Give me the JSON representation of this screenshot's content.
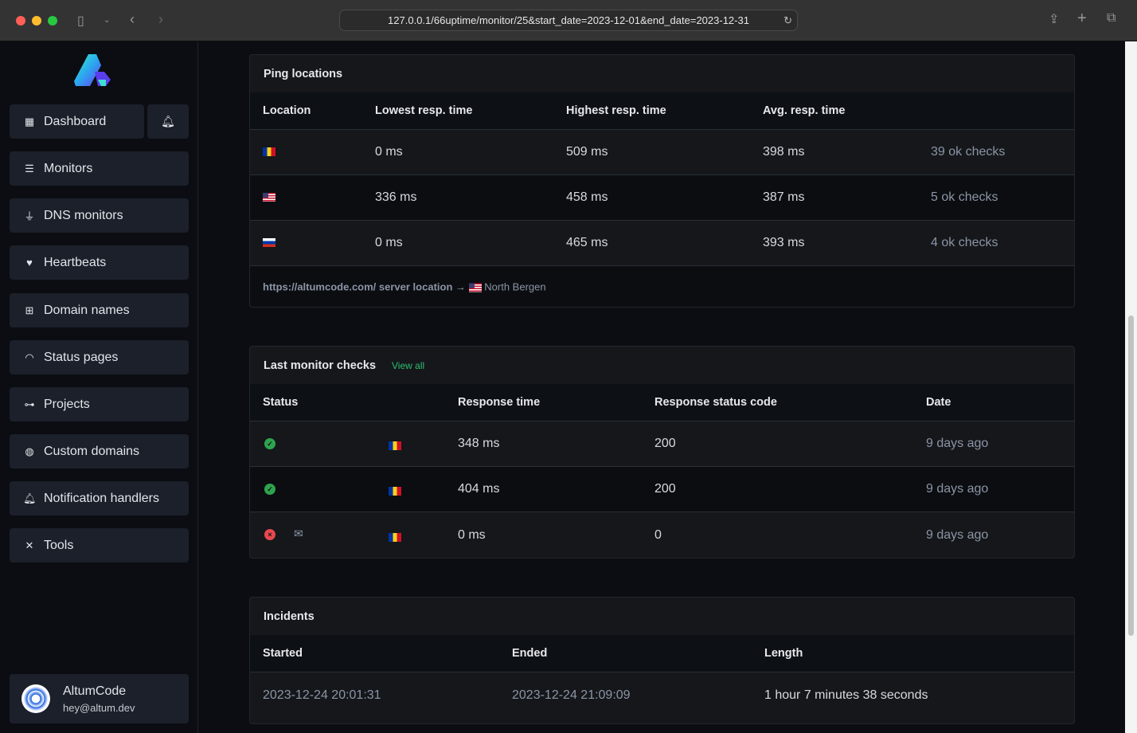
{
  "browser": {
    "url": "127.0.0.1/66uptime/monitor/25&start_date=2023-12-01&end_date=2023-12-31"
  },
  "sidebar": {
    "items": [
      {
        "label": "Dashboard",
        "icon": "grid-icon"
      },
      {
        "label": "Monitors",
        "icon": "server-icon"
      },
      {
        "label": "DNS monitors",
        "icon": "plug-icon"
      },
      {
        "label": "Heartbeats",
        "icon": "heart-pulse-icon"
      },
      {
        "label": "Domain names",
        "icon": "network-icon"
      },
      {
        "label": "Status pages",
        "icon": "wifi-icon"
      },
      {
        "label": "Projects",
        "icon": "project-diagram-icon"
      },
      {
        "label": "Custom domains",
        "icon": "globe-icon"
      },
      {
        "label": "Notification handlers",
        "icon": "bell-icon"
      },
      {
        "label": "Tools",
        "icon": "tools-icon"
      }
    ],
    "user": {
      "name": "AltumCode",
      "email": "hey@altum.dev"
    }
  },
  "ping": {
    "title": "Ping locations",
    "headers": [
      "Location",
      "Lowest resp. time",
      "Highest resp. time",
      "Avg. resp. time"
    ],
    "rows": [
      {
        "flag": "ro",
        "lowest": "0 ms",
        "highest": "509 ms",
        "avg": "398 ms",
        "checks": "39 ok checks"
      },
      {
        "flag": "us",
        "lowest": "336 ms",
        "highest": "458 ms",
        "avg": "387 ms",
        "checks": "5 ok checks"
      },
      {
        "flag": "ru",
        "lowest": "0 ms",
        "highest": "465 ms",
        "avg": "393 ms",
        "checks": "4 ok checks"
      }
    ],
    "footer": {
      "text": "https://altumcode.com/ server location",
      "arrow": "→",
      "location": "North Bergen"
    }
  },
  "checks": {
    "title": "Last monitor checks",
    "view_all": "View all",
    "headers": [
      "Status",
      "Response time",
      "Response status code",
      "Date"
    ],
    "rows": [
      {
        "status": "ok",
        "time": "348 ms",
        "code": "200",
        "date": "9 days ago"
      },
      {
        "status": "ok",
        "time": "404 ms",
        "code": "200",
        "date": "9 days ago"
      },
      {
        "status": "error",
        "time": "0 ms",
        "code": "0",
        "date": "9 days ago"
      }
    ]
  },
  "incidents": {
    "title": "Incidents",
    "headers": [
      "Started",
      "Ended",
      "Length"
    ],
    "rows": [
      {
        "started": "2023-12-24 20:01:31",
        "ended": "2023-12-24 21:09:09",
        "length": "1 hour 7 minutes 38 seconds"
      }
    ]
  },
  "colors": {
    "ok": "#2da44e",
    "error": "#e5484d",
    "link": "#2dbd6e"
  }
}
